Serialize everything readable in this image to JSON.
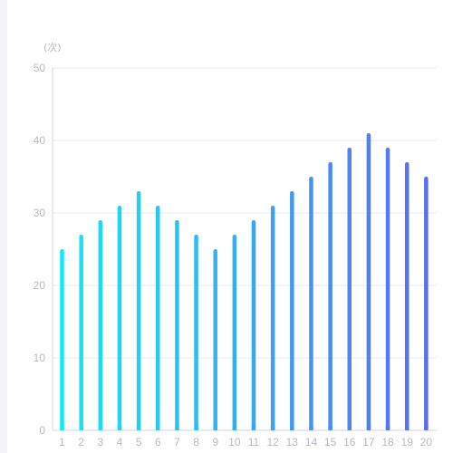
{
  "chart_data": {
    "type": "bar",
    "title": "",
    "xlabel": "",
    "ylabel": "(次)",
    "ylim": [
      0,
      50
    ],
    "yticks": [
      "0",
      "10",
      "20",
      "30",
      "40",
      "50"
    ],
    "grid": true,
    "categories": [
      "1",
      "2",
      "3",
      "4",
      "5",
      "6",
      "7",
      "8",
      "9",
      "10",
      "11",
      "12",
      "13",
      "14",
      "15",
      "16",
      "17",
      "18",
      "19",
      "20"
    ],
    "values": [
      25,
      27,
      29,
      31,
      33,
      31,
      29,
      27,
      25,
      27,
      29,
      31,
      33,
      35,
      37,
      39,
      41,
      39,
      37,
      35
    ],
    "colors": {
      "gradient_start": "#14e9f3",
      "gradient_end": "#5b6cf0",
      "gridline": "#e8e8ee",
      "axis": "#d6d6de",
      "label": "#b8b8c4"
    }
  }
}
